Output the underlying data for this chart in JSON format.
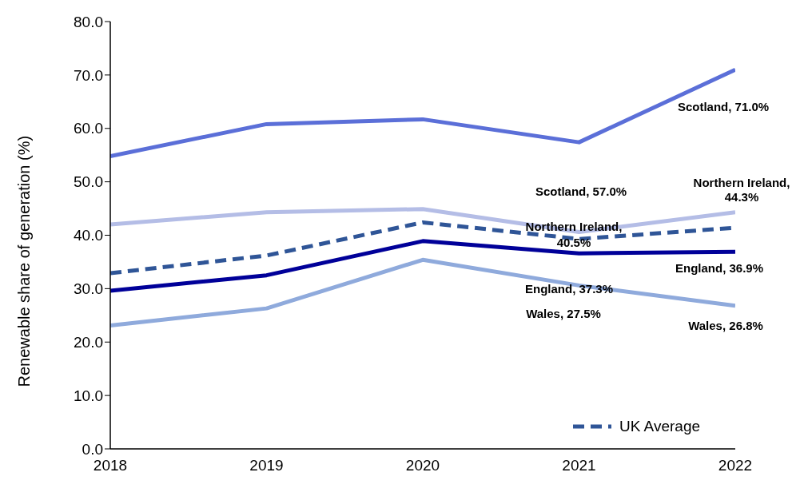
{
  "chart_data": {
    "type": "line",
    "ylabel": "Renewable share of generation (%)",
    "x": [
      2018,
      2019,
      2020,
      2021,
      2022
    ],
    "xlim": [
      2018,
      2022
    ],
    "xticks": [
      2018,
      2019,
      2020,
      2021,
      2022
    ],
    "ylim": [
      0,
      80
    ],
    "yticks": [
      {
        "value": 0,
        "label": "0.0"
      },
      {
        "value": 10,
        "label": "10.0"
      },
      {
        "value": 20,
        "label": "20.0"
      },
      {
        "value": 30,
        "label": "30.0"
      },
      {
        "value": 40,
        "label": "40.0"
      },
      {
        "value": 50,
        "label": "50.0"
      },
      {
        "value": 60,
        "label": "60.0"
      },
      {
        "value": 70,
        "label": "70.0"
      },
      {
        "value": 80,
        "label": "80.0"
      }
    ],
    "series": [
      {
        "color": "#5b6fd8",
        "values": [
          54.8,
          60.8,
          61.7,
          57.4,
          71.0
        ],
        "value_labels": [
          null,
          null,
          null,
          null,
          "Scotland, 71.0%"
        ]
      },
      {
        "color": "#b4bde6",
        "values": [
          42.0,
          44.3,
          44.9,
          40.6,
          44.3
        ],
        "value_labels": [
          null,
          null,
          null,
          null,
          "Northern Ireland, 44.3%"
        ]
      },
      {
        "name": "UK Average",
        "color": "#2f5597",
        "line_style": "dashed",
        "values": [
          32.9,
          36.2,
          42.4,
          39.3,
          41.4
        ]
      },
      {
        "color": "#000099",
        "values": [
          29.6,
          32.5,
          38.9,
          36.6,
          36.9
        ],
        "value_labels": [
          null,
          null,
          null,
          null,
          "England, 36.9%"
        ]
      },
      {
        "color": "#8faadc",
        "values": [
          23.1,
          26.3,
          35.4,
          30.6,
          26.8
        ],
        "value_labels": [
          null,
          null,
          null,
          null,
          "Wales, 26.8%"
        ]
      }
    ],
    "annotations": [
      "Scotland, 57.0%",
      "Northern Ireland, 40.5%",
      "England, 37.3%",
      "Wales, 27.5%"
    ],
    "legend": "bottom right",
    "marker": "none"
  }
}
